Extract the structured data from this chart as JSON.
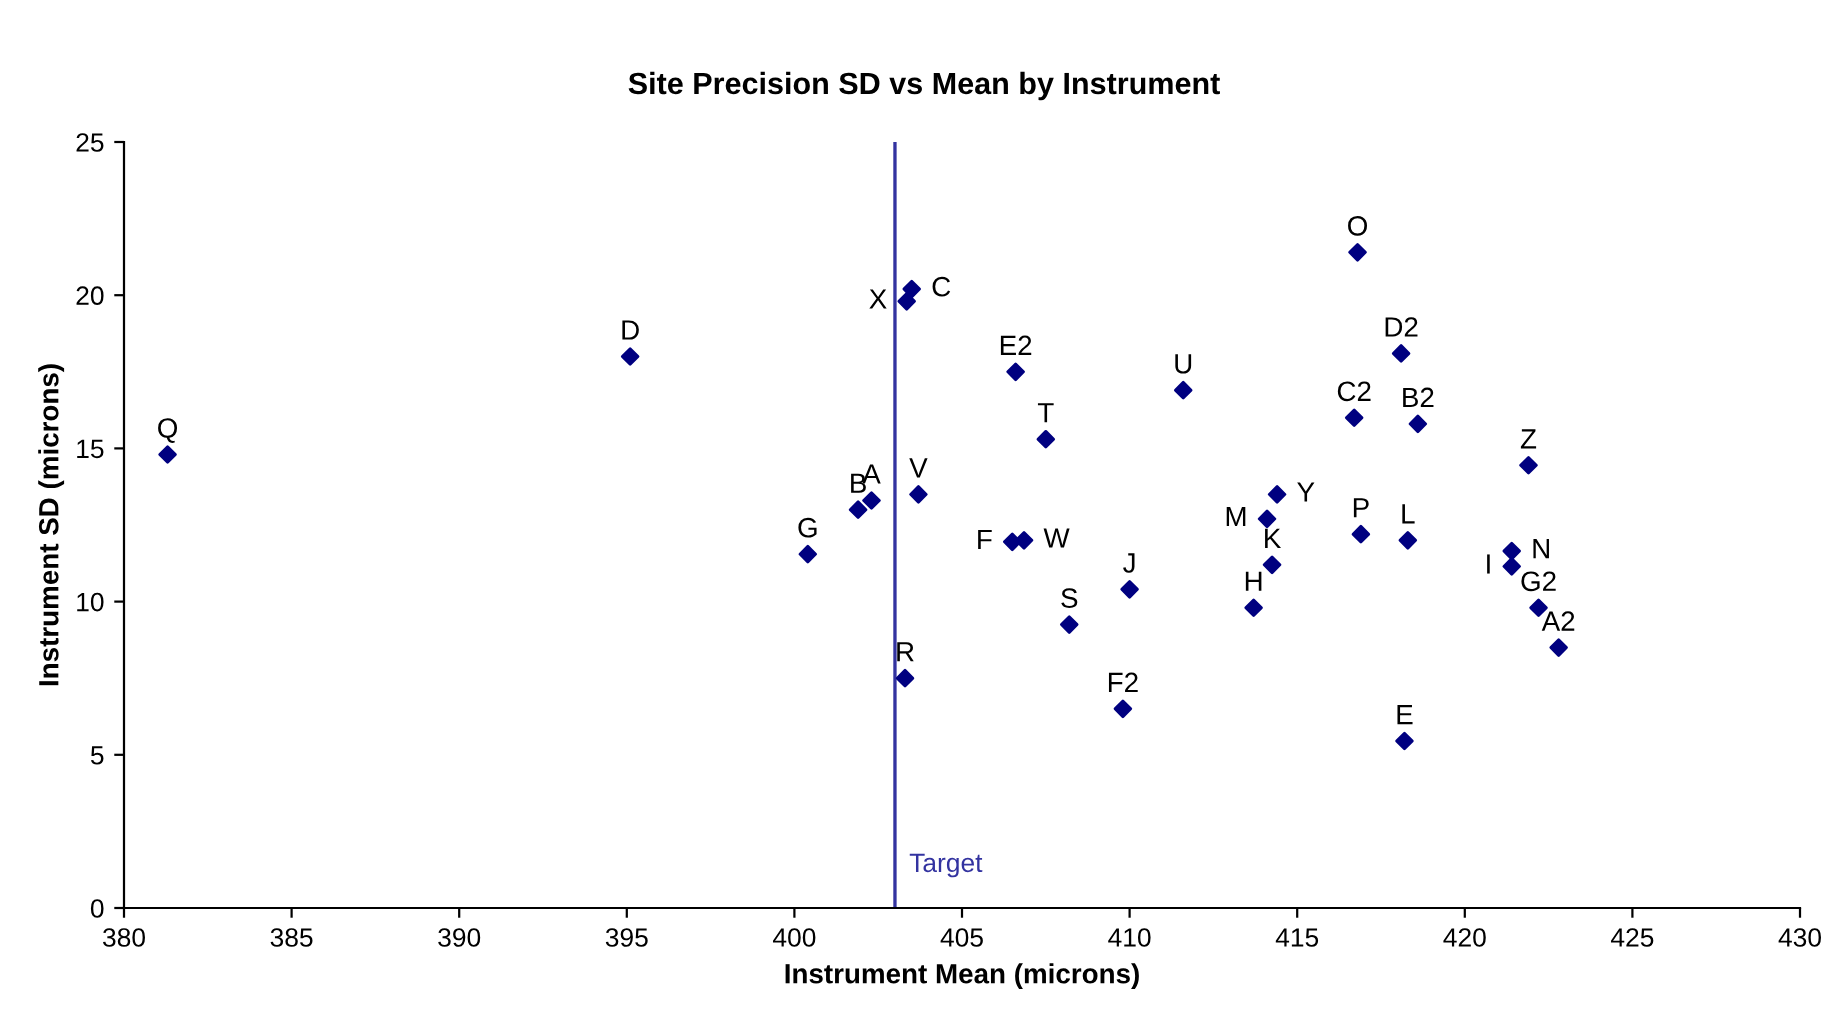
{
  "chart_data": {
    "type": "scatter",
    "title": "Site Precision SD vs Mean by Instrument",
    "xlabel": "Instrument Mean (microns)",
    "ylabel": "Instrument SD (microns)",
    "x": [
      381.3,
      395.1,
      400.4,
      401.9,
      402.3,
      403.35,
      403.5,
      403.7,
      403.3,
      406.6,
      407.5,
      411.6,
      406.5,
      406.85,
      410.0,
      408.2,
      409.8,
      414.4,
      414.1,
      414.25,
      413.7,
      416.8,
      418.1,
      416.7,
      418.6,
      421.9,
      416.9,
      418.3,
      421.4,
      421.4,
      422.2,
      422.8,
      418.2
    ],
    "values": [
      14.8,
      18.0,
      11.55,
      13.0,
      13.3,
      19.8,
      20.2,
      13.5,
      7.5,
      17.5,
      15.3,
      16.9,
      11.95,
      12.0,
      10.4,
      9.25,
      6.5,
      13.5,
      12.7,
      11.2,
      9.8,
      21.4,
      18.1,
      16.0,
      15.8,
      14.45,
      12.2,
      12.0,
      11.65,
      11.15,
      9.8,
      8.5,
      5.45
    ],
    "color": "#000080",
    "marker": "diamond",
    "annotations": [
      {
        "text": "Q",
        "x": 381.3,
        "y": 14.8
      },
      {
        "text": "D",
        "x": 395.1,
        "y": 18.0
      },
      {
        "text": "G",
        "x": 400.4,
        "y": 11.55
      },
      {
        "text": "B",
        "x": 401.9,
        "y": 13.0
      },
      {
        "text": "A",
        "x": 402.3,
        "y": 13.3
      },
      {
        "text": "X",
        "x": 403.35,
        "y": 19.8
      },
      {
        "text": "C",
        "x": 403.5,
        "y": 20.2
      },
      {
        "text": "V",
        "x": 403.7,
        "y": 13.5
      },
      {
        "text": "R",
        "x": 403.3,
        "y": 7.5
      },
      {
        "text": "E2",
        "x": 406.6,
        "y": 17.5
      },
      {
        "text": "T",
        "x": 407.5,
        "y": 15.3
      },
      {
        "text": "U",
        "x": 411.6,
        "y": 16.9
      },
      {
        "text": "F",
        "x": 406.5,
        "y": 11.95
      },
      {
        "text": "W",
        "x": 406.85,
        "y": 12.0
      },
      {
        "text": "J",
        "x": 410.0,
        "y": 10.4
      },
      {
        "text": "S",
        "x": 408.2,
        "y": 9.25
      },
      {
        "text": "F2",
        "x": 409.8,
        "y": 6.5
      },
      {
        "text": "Y",
        "x": 414.4,
        "y": 13.5
      },
      {
        "text": "M",
        "x": 414.1,
        "y": 12.7
      },
      {
        "text": "K",
        "x": 414.25,
        "y": 11.2
      },
      {
        "text": "H",
        "x": 413.7,
        "y": 9.8
      },
      {
        "text": "O",
        "x": 416.8,
        "y": 21.4
      },
      {
        "text": "D2",
        "x": 418.1,
        "y": 18.1
      },
      {
        "text": "C2",
        "x": 416.7,
        "y": 16.0
      },
      {
        "text": "B2",
        "x": 418.6,
        "y": 15.8
      },
      {
        "text": "Z",
        "x": 421.9,
        "y": 14.45
      },
      {
        "text": "P",
        "x": 416.9,
        "y": 12.2
      },
      {
        "text": "L",
        "x": 418.3,
        "y": 12.0
      },
      {
        "text": "N",
        "x": 421.4,
        "y": 11.65
      },
      {
        "text": "I",
        "x": 421.4,
        "y": 11.15
      },
      {
        "text": "G2",
        "x": 422.2,
        "y": 9.8
      },
      {
        "text": "A2",
        "x": 422.8,
        "y": 8.5
      },
      {
        "text": "E",
        "x": 418.2,
        "y": 5.45
      }
    ],
    "ref_lines": [
      {
        "axis": "x",
        "value": 403,
        "label": "Target",
        "color": "#3333a0"
      }
    ],
    "xlim": [
      380,
      430
    ],
    "xticks": [
      380,
      385,
      390,
      395,
      400,
      405,
      410,
      415,
      420,
      425,
      430
    ],
    "ylim": [
      0,
      25
    ],
    "yticks": [
      0,
      5,
      10,
      15,
      20,
      25
    ],
    "grid": false,
    "legend": false
  }
}
